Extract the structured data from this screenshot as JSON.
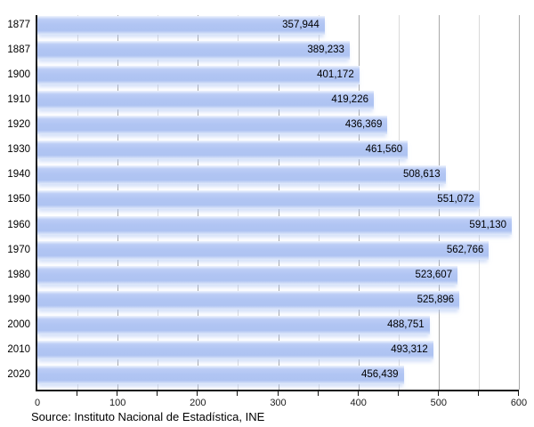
{
  "chart_data": {
    "type": "bar",
    "orientation": "horizontal",
    "title": "",
    "categories": [
      "1877",
      "1887",
      "1900",
      "1910",
      "1920",
      "1930",
      "1940",
      "1950",
      "1960",
      "1970",
      "1980",
      "1990",
      "2000",
      "2010",
      "2020"
    ],
    "values": [
      357944,
      389233,
      401172,
      419226,
      436369,
      461560,
      508613,
      551072,
      591130,
      562766,
      523607,
      525896,
      488751,
      493312,
      456439
    ],
    "value_labels": [
      "357,944",
      "389,233",
      "401,172",
      "419,226",
      "436,369",
      "461,560",
      "508,613",
      "551,072",
      "591,130",
      "562,766",
      "523,607",
      "525,896",
      "488,751",
      "493,312",
      "456,439"
    ],
    "x_axis": {
      "tick_labels": [
        "0",
        "100",
        "200",
        "300",
        "400",
        "500",
        "600"
      ],
      "major_tick_values": [
        0,
        100,
        200,
        300,
        400,
        500,
        600
      ],
      "minor_tick_step": 50,
      "range": [
        0,
        600
      ],
      "axis_units_per_value": 0.001
    },
    "grid": {
      "vertical": true,
      "minor_every": 50,
      "major_every": 100
    },
    "legend": "none",
    "colors": {
      "bar": "#b1c5f3",
      "grid_major": "#a8a8a8",
      "grid_minor": "#d9d9d9",
      "axis": "#111111",
      "label_text": "#000000"
    }
  },
  "footer": {
    "source": "Source: Instituto Nacional de Estadística, INE"
  }
}
